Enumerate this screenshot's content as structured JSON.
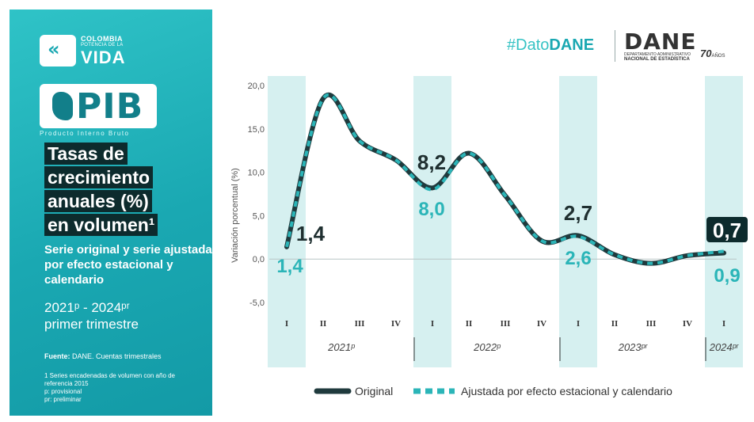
{
  "left_panel": {
    "logo": {
      "line1": "COLOMBIA",
      "line2": "POTENCIA DE LA",
      "line3": "VIDA"
    },
    "pib": {
      "label": "PIB",
      "subtitle": "Producto Interno Bruto"
    },
    "title_lines": [
      "Tasas de",
      "crecimiento",
      "anuales (%)",
      "en volumen¹"
    ],
    "subtitle": "Serie original y serie ajustada por efecto estacional y calendario",
    "years_line1": "2021ᵖ - 2024ᵖʳ",
    "years_line2": "primer trimestre",
    "fuente_label": "Fuente:",
    "fuente_text": " DANE. Cuentas trimestrales",
    "note1": "1 Series encadenadas de volumen con año de referencia 2015",
    "note2": "p: provisional",
    "note3": "pr: preliminar"
  },
  "header": {
    "hashtag_prefix": "#Dato",
    "hashtag_suffix": "DANE",
    "dane": "DANE",
    "dane_sub1": "DEPARTAMENTO ADMINISTRATIVO",
    "dane_sub2": "NACIONAL DE ESTADÍSTICA",
    "dane_70": "70",
    "dane_70_suffix": "AÑOS"
  },
  "chart_data": {
    "type": "line",
    "ylabel": "Variación porcentual (%)",
    "ylim": [
      -5,
      20
    ],
    "yticks": [
      "20,0",
      "15,0",
      "10,0",
      "5,0",
      "0,0",
      "-5,0"
    ],
    "yticks_values": [
      20,
      15,
      10,
      5,
      0,
      -5
    ],
    "categories": [
      "I",
      "II",
      "III",
      "IV",
      "I",
      "II",
      "III",
      "IV",
      "I",
      "II",
      "III",
      "IV",
      "I"
    ],
    "year_labels": [
      {
        "label": "2021ᵖ",
        "start": 0,
        "end": 3
      },
      {
        "label": "2022ᵖ",
        "start": 4,
        "end": 7
      },
      {
        "label": "2023ᵖʳ",
        "start": 8,
        "end": 11
      },
      {
        "label": "2024ᵖʳ",
        "start": 12,
        "end": 12
      }
    ],
    "highlight_indices": [
      0,
      4,
      8,
      12
    ],
    "series": [
      {
        "name": "Original",
        "color": "#1f3a3d",
        "values": [
          1.4,
          18.5,
          13.6,
          11.4,
          8.2,
          12.2,
          7.3,
          2.1,
          2.7,
          0.5,
          -0.5,
          0.4,
          0.7
        ]
      },
      {
        "name": "Ajustada por efecto estacional y calendario",
        "color": "#2bb5b8",
        "values": [
          1.4,
          18.5,
          13.6,
          11.4,
          8.0,
          12.2,
          7.3,
          2.1,
          2.6,
          0.5,
          -0.5,
          0.4,
          0.9
        ]
      }
    ],
    "labels_original": [
      {
        "index": 0,
        "text": "1,4"
      },
      {
        "index": 4,
        "text": "8,2"
      },
      {
        "index": 8,
        "text": "2,7"
      },
      {
        "index": 12,
        "text": "0,7"
      }
    ],
    "labels_adjusted": [
      {
        "index": 0,
        "text": "1,4"
      },
      {
        "index": 4,
        "text": "8,0"
      },
      {
        "index": 8,
        "text": "2,6"
      },
      {
        "index": 12,
        "text": "0,9"
      }
    ],
    "legend": [
      "Original",
      "Ajustada por efecto estacional y calendario"
    ],
    "legend_position": "bottom",
    "colors": {
      "band": "#d6f0f0",
      "original": "#1f3a3d",
      "adjusted": "#2bb5b8",
      "zero_line": "#b8c6c6"
    }
  }
}
